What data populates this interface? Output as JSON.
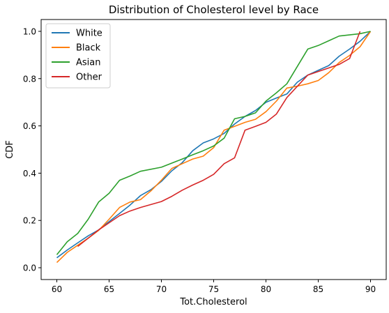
{
  "chart_data": {
    "type": "line",
    "title": "Distribution of Cholesterol level by Race",
    "xlabel": "Tot.Cholesterol",
    "ylabel": "CDF",
    "xlim": [
      58.5,
      91.5
    ],
    "ylim": [
      -0.05,
      1.05
    ],
    "xticks": [
      60,
      65,
      70,
      75,
      80,
      85,
      90
    ],
    "yticks": [
      0.0,
      0.2,
      0.4,
      0.6,
      0.8,
      1.0
    ],
    "xtick_labels": [
      "60",
      "65",
      "70",
      "75",
      "80",
      "85",
      "90"
    ],
    "ytick_labels": [
      "0.0",
      "0.2",
      "0.4",
      "0.6",
      "0.8",
      "1.0"
    ],
    "legend_position": "top-left",
    "grid": false,
    "series": [
      {
        "name": "White",
        "color": "#1f77b4",
        "points": [
          [
            60,
            0.042
          ],
          [
            61,
            0.075
          ],
          [
            62,
            0.105
          ],
          [
            63,
            0.135
          ],
          [
            64,
            0.16
          ],
          [
            65,
            0.195
          ],
          [
            66,
            0.23
          ],
          [
            67,
            0.265
          ],
          [
            68,
            0.305
          ],
          [
            69,
            0.33
          ],
          [
            70,
            0.365
          ],
          [
            71,
            0.41
          ],
          [
            72,
            0.445
          ],
          [
            73,
            0.495
          ],
          [
            74,
            0.528
          ],
          [
            75,
            0.545
          ],
          [
            76,
            0.568
          ],
          [
            77,
            0.608
          ],
          [
            78,
            0.64
          ],
          [
            79,
            0.665
          ],
          [
            80,
            0.7
          ],
          [
            81,
            0.718
          ],
          [
            82,
            0.735
          ],
          [
            83,
            0.785
          ],
          [
            84,
            0.815
          ],
          [
            85,
            0.835
          ],
          [
            86,
            0.855
          ],
          [
            87,
            0.895
          ],
          [
            88,
            0.925
          ],
          [
            89,
            0.958
          ],
          [
            90,
            1.0
          ]
        ]
      },
      {
        "name": "Black",
        "color": "#ff7f0e",
        "points": [
          [
            60,
            0.022
          ],
          [
            61,
            0.065
          ],
          [
            62,
            0.095
          ],
          [
            63,
            0.125
          ],
          [
            64,
            0.158
          ],
          [
            65,
            0.205
          ],
          [
            66,
            0.255
          ],
          [
            67,
            0.278
          ],
          [
            68,
            0.288
          ],
          [
            69,
            0.325
          ],
          [
            70,
            0.37
          ],
          [
            71,
            0.42
          ],
          [
            72,
            0.44
          ],
          [
            73,
            0.46
          ],
          [
            74,
            0.472
          ],
          [
            75,
            0.508
          ],
          [
            76,
            0.582
          ],
          [
            77,
            0.598
          ],
          [
            78,
            0.615
          ],
          [
            79,
            0.628
          ],
          [
            80,
            0.66
          ],
          [
            81,
            0.705
          ],
          [
            82,
            0.76
          ],
          [
            83,
            0.768
          ],
          [
            84,
            0.778
          ],
          [
            85,
            0.792
          ],
          [
            86,
            0.825
          ],
          [
            87,
            0.868
          ],
          [
            88,
            0.898
          ],
          [
            89,
            0.935
          ],
          [
            90,
            1.0
          ]
        ]
      },
      {
        "name": "Asian",
        "color": "#2ca02c",
        "points": [
          [
            60,
            0.055
          ],
          [
            61,
            0.11
          ],
          [
            62,
            0.145
          ],
          [
            63,
            0.205
          ],
          [
            64,
            0.278
          ],
          [
            65,
            0.315
          ],
          [
            66,
            0.37
          ],
          [
            67,
            0.388
          ],
          [
            68,
            0.408
          ],
          [
            70,
            0.425
          ],
          [
            72,
            0.46
          ],
          [
            73,
            0.478
          ],
          [
            74,
            0.495
          ],
          [
            75,
            0.515
          ],
          [
            76,
            0.548
          ],
          [
            77,
            0.63
          ],
          [
            78,
            0.64
          ],
          [
            79,
            0.655
          ],
          [
            80,
            0.705
          ],
          [
            81,
            0.74
          ],
          [
            82,
            0.778
          ],
          [
            84,
            0.925
          ],
          [
            85,
            0.94
          ],
          [
            86,
            0.96
          ],
          [
            87,
            0.98
          ],
          [
            89,
            0.99
          ],
          [
            90,
            1.0
          ]
        ]
      },
      {
        "name": "Other",
        "color": "#d62728",
        "points": [
          [
            62,
            0.09
          ],
          [
            64,
            0.16
          ],
          [
            65,
            0.19
          ],
          [
            66,
            0.22
          ],
          [
            67,
            0.24
          ],
          [
            68,
            0.255
          ],
          [
            70,
            0.28
          ],
          [
            71,
            0.302
          ],
          [
            72,
            0.328
          ],
          [
            73,
            0.35
          ],
          [
            74,
            0.37
          ],
          [
            75,
            0.395
          ],
          [
            76,
            0.44
          ],
          [
            77,
            0.465
          ],
          [
            78,
            0.582
          ],
          [
            79,
            0.598
          ],
          [
            80,
            0.615
          ],
          [
            81,
            0.65
          ],
          [
            82,
            0.72
          ],
          [
            84,
            0.815
          ],
          [
            85,
            0.83
          ],
          [
            86,
            0.845
          ],
          [
            87,
            0.86
          ],
          [
            88,
            0.885
          ],
          [
            89,
            1.0
          ]
        ]
      }
    ]
  }
}
